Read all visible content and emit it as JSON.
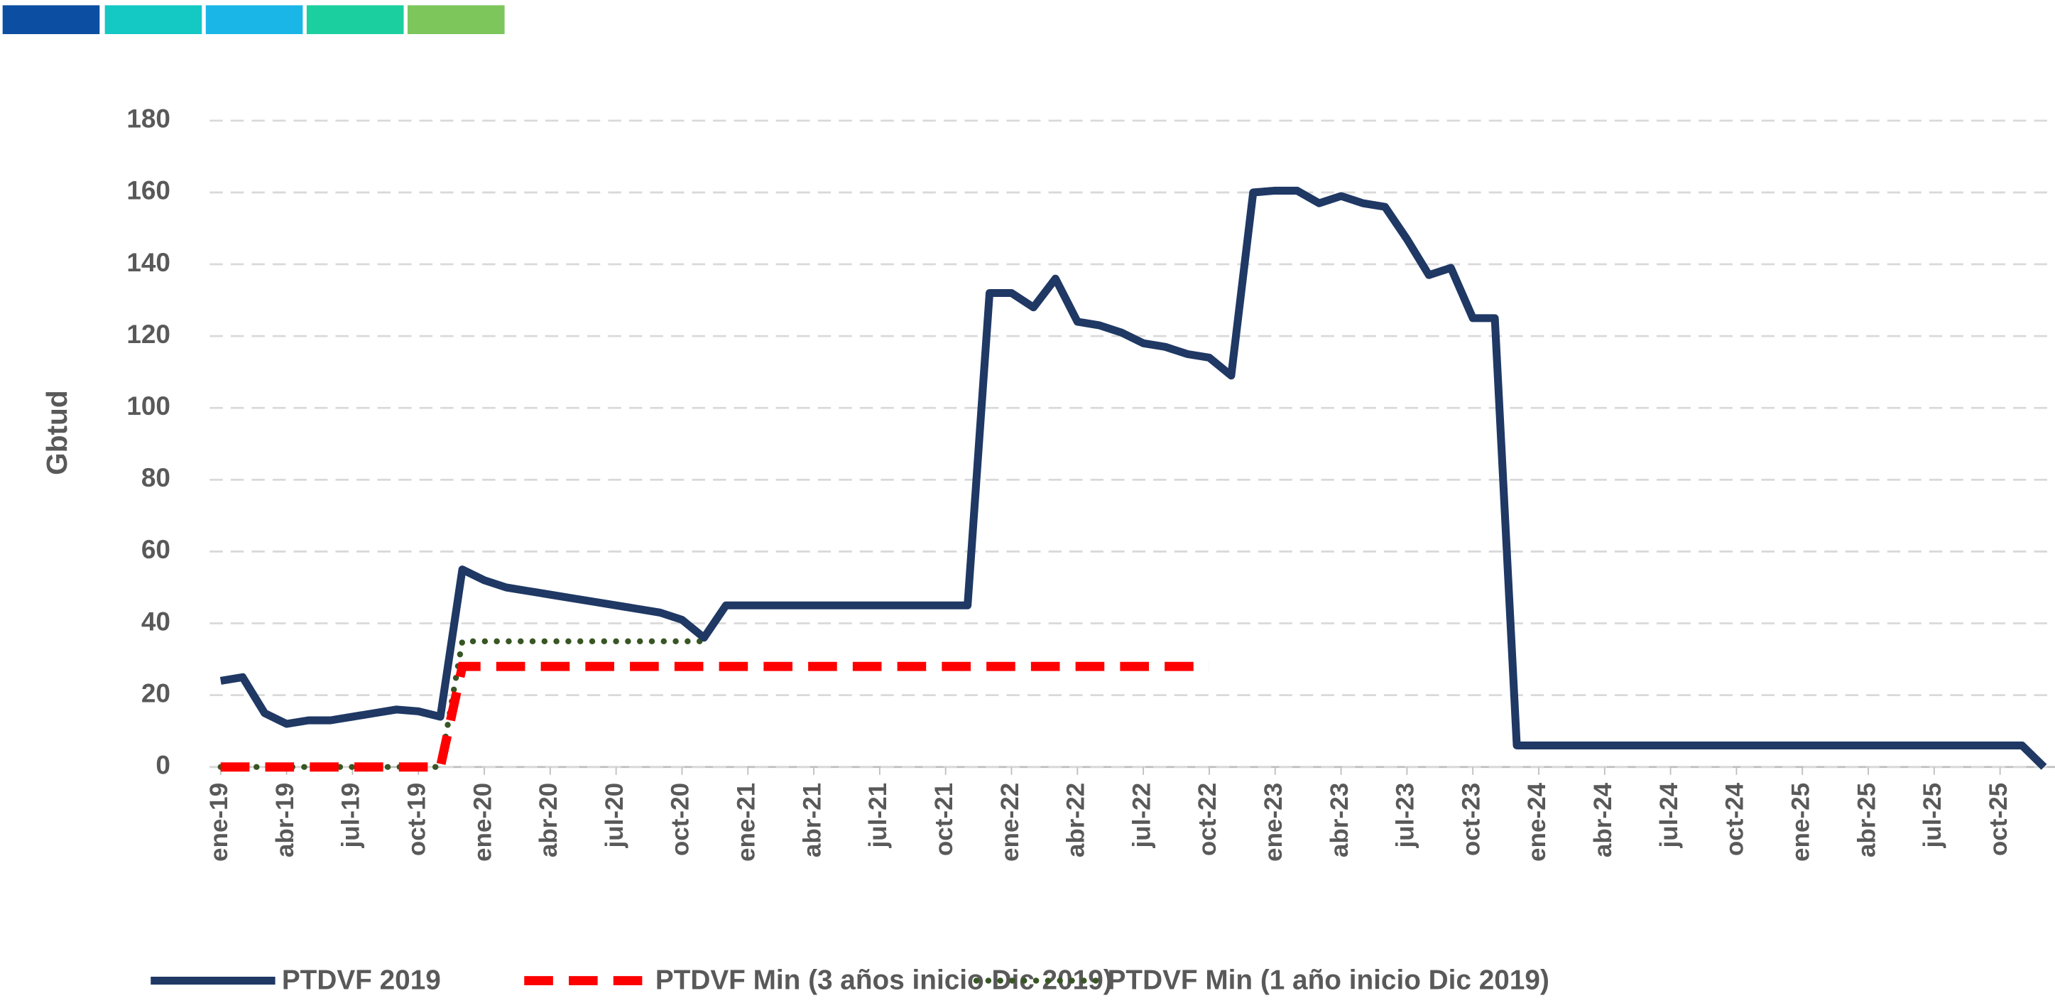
{
  "chart_data": {
    "type": "line",
    "y_label": "Gbtud",
    "categories": [
      "ene-19",
      null,
      null,
      "abr-19",
      null,
      null,
      "jul-19",
      null,
      null,
      "oct-19",
      null,
      null,
      "ene-20",
      null,
      null,
      "abr-20",
      null,
      null,
      "jul-20",
      null,
      null,
      "oct-20",
      null,
      null,
      "ene-21",
      null,
      null,
      "abr-21",
      null,
      null,
      "jul-21",
      null,
      null,
      "oct-21",
      null,
      null,
      "ene-22",
      null,
      null,
      "abr-22",
      null,
      null,
      "jul-22",
      null,
      null,
      "oct-22",
      null,
      null,
      "ene-23",
      null,
      null,
      "abr-23",
      null,
      null,
      "jul-23",
      null,
      null,
      "oct-23",
      null,
      null,
      "ene-24",
      null,
      null,
      "abr-24",
      null,
      null,
      "jul-24",
      null,
      null,
      "oct-24",
      null,
      null,
      "ene-25",
      null,
      null,
      "abr-25",
      null,
      null,
      "jul-25",
      null,
      null,
      "oct-25",
      null,
      null
    ],
    "series": [
      {
        "name": "PTDVF 2019",
        "color": "#1f3864",
        "style": "solid",
        "values": [
          24,
          25,
          15,
          12,
          13,
          13,
          14,
          15,
          16,
          15.5,
          14,
          55,
          52,
          50,
          49,
          48,
          47,
          46,
          45,
          44,
          43,
          41,
          36,
          45,
          45,
          45,
          45,
          45,
          45,
          45,
          45,
          45,
          45,
          45,
          45,
          132,
          132,
          128,
          136,
          124,
          123,
          121,
          118,
          117,
          115,
          114,
          109,
          160,
          160.5,
          160.5,
          157,
          159,
          157,
          156,
          147,
          137,
          139,
          125,
          125,
          6,
          6,
          6,
          6,
          6,
          6,
          6,
          6,
          6,
          6,
          6,
          6,
          6,
          6,
          6,
          6,
          6,
          6,
          6,
          6,
          6,
          6,
          6,
          6,
          0
        ]
      },
      {
        "name": "PTDVF Min (3 años inicio Dic 2019)",
        "color": "#ff0000",
        "style": "dashed",
        "values": [
          0,
          0,
          0,
          0,
          0,
          0,
          0,
          0,
          0,
          0,
          0,
          28,
          28,
          28,
          28,
          28,
          28,
          28,
          28,
          28,
          28,
          28,
          28,
          28,
          28,
          28,
          28,
          28,
          28,
          28,
          28,
          28,
          28,
          28,
          28,
          28,
          28,
          28,
          28,
          28,
          28,
          28,
          28,
          28,
          28,
          28,
          null,
          null,
          null,
          null,
          null,
          null,
          null,
          null,
          null,
          null,
          null,
          null,
          null,
          null,
          null,
          null,
          null,
          null,
          null,
          null,
          null,
          null,
          null,
          null,
          null,
          null,
          null,
          null,
          null,
          null,
          null,
          null,
          null,
          null,
          null,
          null,
          null,
          null
        ]
      },
      {
        "name": "PTDVF Min (1 año inicio Dic 2019)",
        "color": "#375623",
        "style": "dotted",
        "values": [
          0,
          0,
          0,
          0,
          0,
          0,
          0,
          0,
          0,
          0,
          0,
          35,
          35,
          35,
          35,
          35,
          35,
          35,
          35,
          35,
          35,
          35,
          35,
          null,
          null,
          null,
          null,
          null,
          null,
          null,
          null,
          null,
          null,
          null,
          null,
          null,
          null,
          null,
          null,
          null,
          null,
          null,
          null,
          null,
          null,
          null,
          null,
          null,
          null,
          null,
          null,
          null,
          null,
          null,
          null,
          null,
          null,
          null,
          null,
          null,
          null,
          null,
          null,
          null,
          null,
          null,
          null,
          null,
          null,
          null,
          null,
          null,
          null,
          null,
          null,
          null,
          null,
          null,
          null,
          null,
          null,
          null,
          null,
          null
        ]
      }
    ],
    "ylim": [
      0,
      180
    ],
    "yticks": [
      0,
      20,
      40,
      60,
      80,
      100,
      120,
      140,
      160,
      180
    ],
    "grid": true
  }
}
